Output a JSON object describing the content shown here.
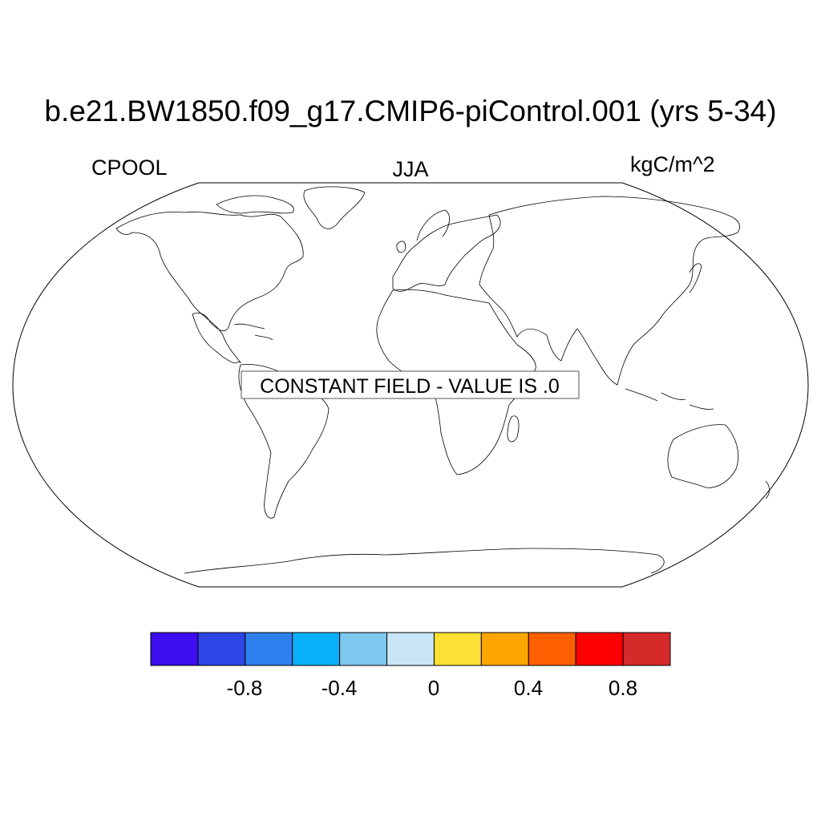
{
  "title": "b.e21.BW1850.f09_g17.CMIP6-piControl.001 (yrs 5-34)",
  "left_string": "CPOOL",
  "center_string": "JJA",
  "right_string": "kgC/m^2",
  "map": {
    "projection": "Robinson",
    "message": "CONSTANT FIELD - VALUE IS .0",
    "constant_value": 0.0
  },
  "colorbar": {
    "colors": [
      "#3e0ef0",
      "#2e46e6",
      "#2d7fee",
      "#08b0fa",
      "#7fc8ef",
      "#c9e6f7",
      "#fde035",
      "#fea600",
      "#fe5f00",
      "#fe0000",
      "#d62a2a"
    ],
    "tick_values": [
      -0.8,
      -0.4,
      0,
      0.4,
      0.8
    ],
    "tick_labels": [
      "-0.8",
      "-0.4",
      "0",
      "0.4",
      "0.8"
    ],
    "levels": [
      -1.0,
      -0.8,
      -0.6,
      -0.4,
      -0.2,
      0.0,
      0.2,
      0.4,
      0.6,
      0.8,
      1.0
    ]
  }
}
